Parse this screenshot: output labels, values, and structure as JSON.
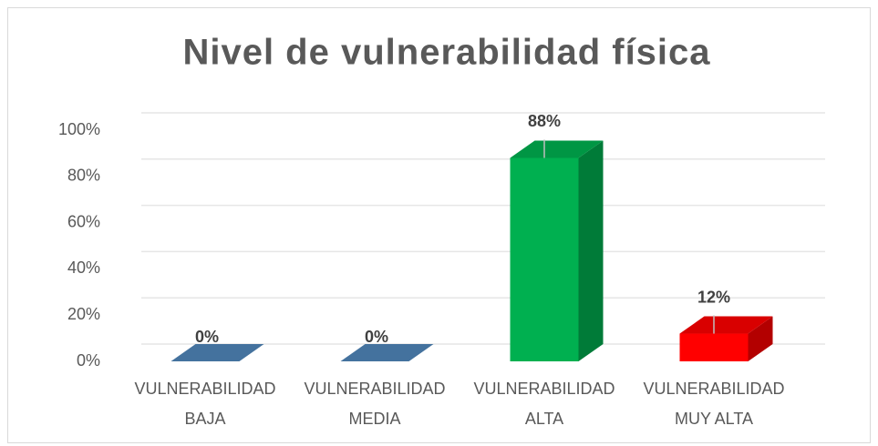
{
  "chart_data": {
    "type": "bar3d",
    "title": "Nivel de vulnerabilidad física",
    "categories": [
      "VULNERABILIDAD BAJA",
      "VULNERABILIDAD MEDIA",
      "VULNERABILIDAD ALTA",
      "VULNERABILIDAD MUY ALTA"
    ],
    "values": [
      0,
      0,
      88,
      12
    ],
    "value_labels": [
      "0%",
      "0%",
      "88%",
      "12%"
    ],
    "colors": [
      "#44729e",
      "#44729e",
      "#00b050",
      "#ff0000"
    ],
    "ylim": [
      0,
      100
    ],
    "yticks": [
      {
        "value": 0,
        "label": "0%"
      },
      {
        "value": 20,
        "label": "20%"
      },
      {
        "value": 40,
        "label": "40%"
      },
      {
        "value": 60,
        "label": "60%"
      },
      {
        "value": 80,
        "label": "80%"
      },
      {
        "value": 100,
        "label": "100%"
      }
    ],
    "grid": true
  }
}
